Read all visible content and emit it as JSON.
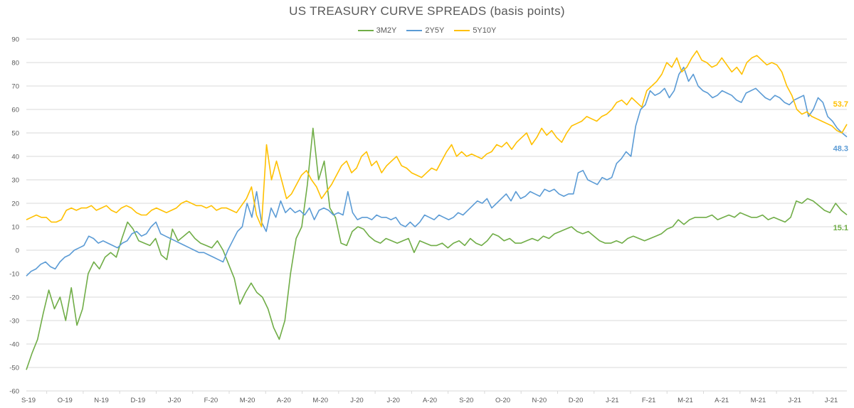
{
  "chart_data": {
    "type": "line",
    "title": "US TREASURY CURVE SPREADS (basis points)",
    "xlabel": "",
    "ylabel": "",
    "ylim": [
      -60,
      90
    ],
    "yticks": [
      90,
      80,
      70,
      60,
      50,
      40,
      30,
      20,
      10,
      0,
      -10,
      -20,
      -30,
      -40,
      -50,
      -60
    ],
    "grid": true,
    "legend_position": "top",
    "categories": [
      "S-19",
      "O-19",
      "N-19",
      "D-19",
      "J-20",
      "F-20",
      "M-20",
      "A-20",
      "M-20",
      "J-20",
      "J-20",
      "A-20",
      "S-20",
      "O-20",
      "N-20",
      "D-20",
      "J-21",
      "F-21",
      "M-21",
      "A-21",
      "M-21",
      "J-21",
      "J-21"
    ],
    "x_note": "Each series sampled at ~10px intervals (~0.2 month) from Sep 2019 to Jul 2021",
    "series": [
      {
        "name": "3M2Y",
        "color": "#70AD47",
        "end_label": "15.1",
        "values": [
          -51,
          -44,
          -38,
          -27,
          -17,
          -25,
          -20,
          -30,
          -16,
          -32,
          -25,
          -10,
          -5,
          -8,
          -3,
          -1,
          -3,
          5,
          12,
          9,
          4,
          3,
          2,
          5,
          -2,
          -4,
          9,
          4,
          6,
          8,
          5,
          3,
          2,
          1,
          4,
          0,
          -6,
          -12,
          -23,
          -18,
          -14,
          -18,
          -20,
          -25,
          -33,
          -38,
          -30,
          -10,
          5,
          10,
          28,
          52,
          30,
          38,
          18,
          14,
          3,
          2,
          8,
          10,
          9,
          6,
          4,
          3,
          5,
          4,
          3,
          4,
          5,
          -1,
          4,
          3,
          2,
          2,
          3,
          1,
          3,
          4,
          2,
          5,
          3,
          2,
          4,
          7,
          6,
          4,
          5,
          3,
          3,
          4,
          5,
          4,
          6,
          5,
          7,
          8,
          9,
          10,
          8,
          7,
          8,
          6,
          4,
          3,
          3,
          4,
          3,
          5,
          6,
          5,
          4,
          5,
          6,
          7,
          9,
          10,
          13,
          11,
          13,
          14,
          14,
          14,
          15,
          13,
          14,
          15,
          14,
          16,
          15,
          14,
          14,
          15,
          13,
          14,
          13,
          12,
          14,
          21,
          20,
          22,
          21,
          19,
          17,
          16,
          20,
          17,
          15.1
        ]
      },
      {
        "name": "2Y5Y",
        "color": "#5B9BD5",
        "end_label": "48.3",
        "values": [
          -11,
          -9,
          -8,
          -6,
          -5,
          -7,
          -8,
          -5,
          -3,
          -2,
          0,
          1,
          2,
          6,
          5,
          3,
          4,
          3,
          2,
          1,
          3,
          4,
          7,
          8,
          6,
          7,
          10,
          12,
          7,
          6,
          5,
          4,
          3,
          2,
          1,
          0,
          -1,
          -1,
          -2,
          -3,
          -4,
          -5,
          0,
          4,
          8,
          10,
          20,
          14,
          25,
          12,
          8,
          18,
          14,
          21,
          16,
          18,
          16,
          17,
          15,
          18,
          13,
          17,
          18,
          17,
          15,
          16,
          15,
          25,
          16,
          13,
          14,
          14,
          13,
          15,
          14,
          14,
          13,
          14,
          11,
          10,
          12,
          10,
          12,
          15,
          14,
          13,
          15,
          14,
          13,
          14,
          16,
          15,
          17,
          19,
          21,
          20,
          22,
          18,
          20,
          22,
          24,
          21,
          25,
          22,
          23,
          25,
          24,
          23,
          26,
          25,
          26,
          24,
          23,
          24,
          24,
          33,
          34,
          30,
          29,
          28,
          31,
          30,
          31,
          37,
          39,
          42,
          40,
          53,
          60,
          62,
          68,
          66,
          67,
          69,
          65,
          68,
          75,
          78,
          72,
          75,
          70,
          68,
          67,
          65,
          66,
          68,
          67,
          66,
          64,
          63,
          67,
          68,
          69,
          67,
          65,
          64,
          66,
          65,
          63,
          62,
          64,
          65,
          66,
          57,
          60,
          65,
          63,
          57,
          55,
          52,
          50,
          48.3
        ]
      },
      {
        "name": "5Y10Y",
        "color": "#FFC000",
        "end_label": "53.7",
        "values": [
          13,
          14,
          15,
          14,
          14,
          12,
          12,
          13,
          17,
          18,
          17,
          18,
          18,
          19,
          17,
          18,
          19,
          17,
          16,
          18,
          19,
          18,
          16,
          15,
          15,
          17,
          18,
          17,
          16,
          17,
          18,
          20,
          21,
          20,
          19,
          19,
          18,
          19,
          17,
          18,
          18,
          17,
          16,
          19,
          22,
          27,
          15,
          10,
          45,
          30,
          38,
          30,
          22,
          24,
          28,
          32,
          34,
          30,
          27,
          22,
          25,
          28,
          32,
          36,
          38,
          33,
          35,
          40,
          42,
          36,
          38,
          33,
          36,
          38,
          40,
          36,
          35,
          33,
          32,
          31,
          33,
          35,
          34,
          38,
          42,
          45,
          40,
          42,
          40,
          41,
          40,
          39,
          41,
          42,
          45,
          44,
          46,
          43,
          46,
          48,
          50,
          45,
          48,
          52,
          49,
          51,
          48,
          46,
          50,
          53,
          54,
          55,
          57,
          56,
          55,
          57,
          58,
          60,
          63,
          64,
          62,
          65,
          63,
          61,
          68,
          70,
          72,
          75,
          80,
          78,
          82,
          76,
          78,
          82,
          85,
          81,
          80,
          78,
          79,
          82,
          79,
          76,
          78,
          75,
          80,
          82,
          83,
          81,
          79,
          80,
          79,
          76,
          70,
          66,
          60,
          58,
          59,
          57,
          56,
          55,
          54,
          53,
          51,
          50,
          53.7
        ]
      }
    ]
  },
  "legend": [
    {
      "label": "3M2Y",
      "color": "#70AD47"
    },
    {
      "label": "2Y5Y",
      "color": "#5B9BD5"
    },
    {
      "label": "5Y10Y",
      "color": "#FFC000"
    }
  ]
}
